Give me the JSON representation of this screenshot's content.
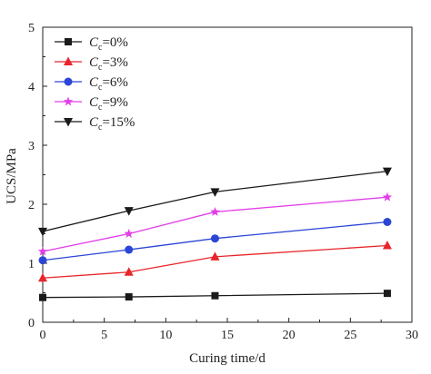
{
  "chart_data": {
    "type": "line",
    "xlabel": "Curing time/d",
    "ylabel": "UCS/MPa",
    "xlim": [
      0,
      30
    ],
    "ylim": [
      0,
      5
    ],
    "xticks": [
      0,
      5,
      10,
      15,
      20,
      25,
      30
    ],
    "yticks": [
      0,
      1,
      2,
      3,
      4,
      5
    ],
    "grid": false,
    "legend_position": "top-left",
    "x": [
      0,
      7,
      14,
      28
    ],
    "series": [
      {
        "name": "C",
        "subscript": "c",
        "suffix": "=0%",
        "values": [
          0.42,
          0.43,
          0.45,
          0.49
        ],
        "color": "#1a1a1a",
        "marker": "square"
      },
      {
        "name": "C",
        "subscript": "c",
        "suffix": "=3%",
        "values": [
          0.75,
          0.85,
          1.11,
          1.3
        ],
        "color": "#e8252b",
        "marker": "triangle-up"
      },
      {
        "name": "C",
        "subscript": "c",
        "suffix": "=6%",
        "values": [
          1.05,
          1.23,
          1.42,
          1.7
        ],
        "color": "#2b45d6",
        "marker": "circle"
      },
      {
        "name": "C",
        "subscript": "c",
        "suffix": "=9%",
        "values": [
          1.2,
          1.5,
          1.87,
          2.12
        ],
        "color": "#e23ee8",
        "marker": "star"
      },
      {
        "name": "C",
        "subscript": "c",
        "suffix": "=15%",
        "values": [
          1.54,
          1.89,
          2.21,
          2.56
        ],
        "color": "#1a1a1a",
        "marker": "triangle-down"
      }
    ]
  }
}
